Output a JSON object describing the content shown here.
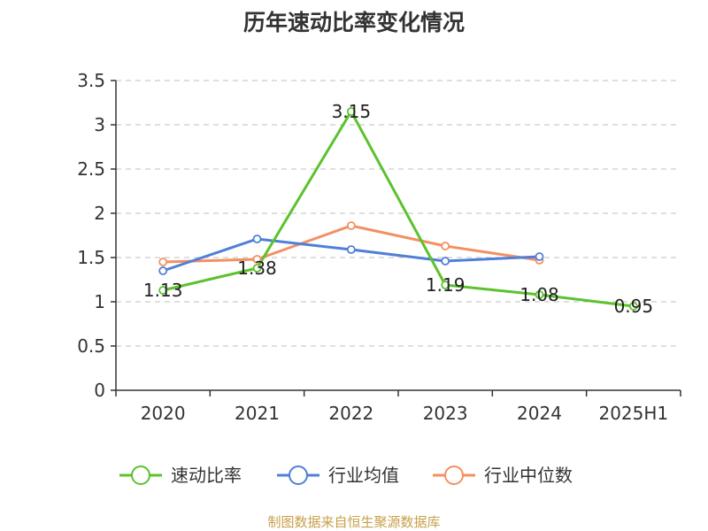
{
  "title": "历年速动比率变化情况",
  "source": "制图数据来自恒生聚源数据库",
  "colors": {
    "source_text": "#c8a04a",
    "grid": "#cccccc",
    "axis": "#333333"
  },
  "chart_data": {
    "type": "line",
    "title": "历年速动比率变化情况",
    "categories": [
      "2020",
      "2021",
      "2022",
      "2023",
      "2024",
      "2025H1"
    ],
    "ylim": [
      0,
      3.5
    ],
    "yticks": [
      "0",
      "0.5",
      "1",
      "1.5",
      "2",
      "2.5",
      "3",
      "3.5"
    ],
    "grid": "horizontal dashed",
    "legend_position": "bottom",
    "series": [
      {
        "name": "速动比率",
        "color": "#5cc22d",
        "values": [
          1.13,
          1.38,
          3.15,
          1.19,
          1.08,
          0.95
        ],
        "labels": [
          "1.13",
          "1.38",
          "3.15",
          "1.19",
          "1.08",
          "0.95"
        ]
      },
      {
        "name": "行业均值",
        "color": "#4f7fd8",
        "values": [
          1.35,
          1.71,
          1.59,
          1.46,
          1.51,
          null
        ]
      },
      {
        "name": "行业中位数",
        "color": "#f39060",
        "values": [
          1.45,
          1.48,
          1.86,
          1.63,
          1.47,
          null
        ]
      }
    ]
  }
}
